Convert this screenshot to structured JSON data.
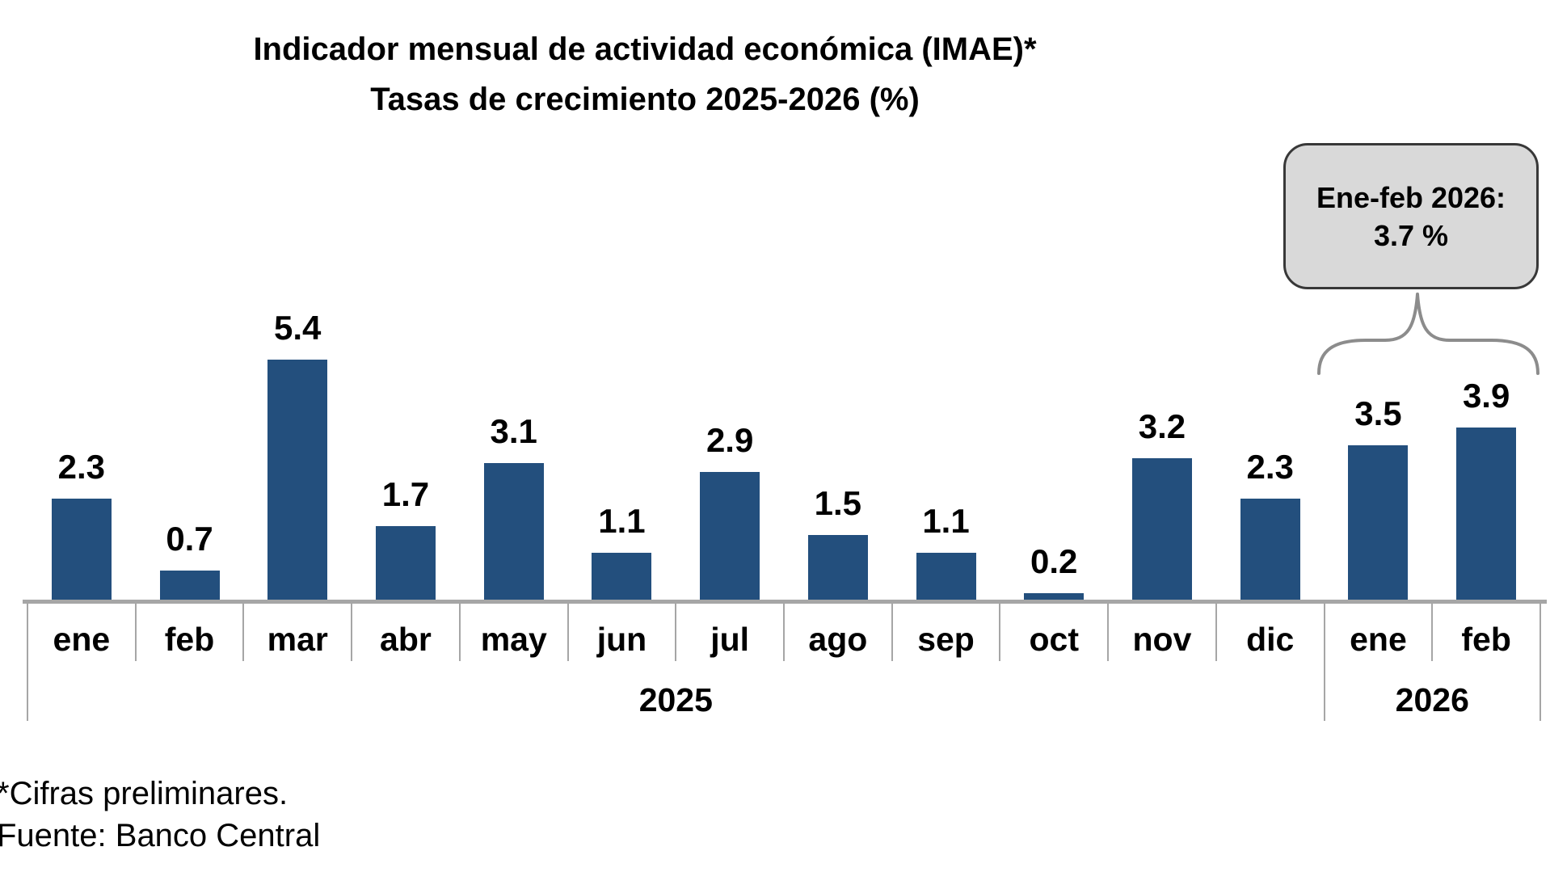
{
  "chart_data": {
    "type": "bar",
    "title": "Indicador mensual de actividad económica (IMAE)*",
    "subtitle": "Tasas de crecimiento 2025-2026 (%)",
    "categories": [
      "ene",
      "feb",
      "mar",
      "abr",
      "may",
      "jun",
      "jul",
      "ago",
      "sep",
      "oct",
      "nov",
      "dic",
      "ene",
      "feb"
    ],
    "values": [
      2.3,
      0.7,
      5.4,
      1.7,
      3.1,
      1.1,
      2.9,
      1.5,
      1.1,
      0.2,
      3.2,
      2.3,
      3.5,
      3.9
    ],
    "data_labels": [
      "2.3",
      "0.7",
      "5.4",
      "1.7",
      "3.1",
      "1.1",
      "2.9",
      "1.5",
      "1.1",
      "0.2",
      "3.2",
      "2.3",
      "3.5",
      "3.9"
    ],
    "groups": [
      {
        "label": "2025",
        "start": 0,
        "count": 12
      },
      {
        "label": "2026",
        "start": 12,
        "count": 2
      }
    ],
    "ylim": [
      0,
      6.2
    ],
    "grid": "off",
    "legend": "none",
    "bar_color": "#234F7D",
    "axis_color": "#A6A6A6"
  },
  "annotation": {
    "line1": "Ene-feb 2026:",
    "line2": "3.7 %",
    "fill": "#D9D9D9",
    "border": "#383838",
    "brace_color": "#8C8C8C"
  },
  "footer": {
    "line1": "*Cifras preliminares.",
    "line2": "Fuente: Banco Central"
  }
}
